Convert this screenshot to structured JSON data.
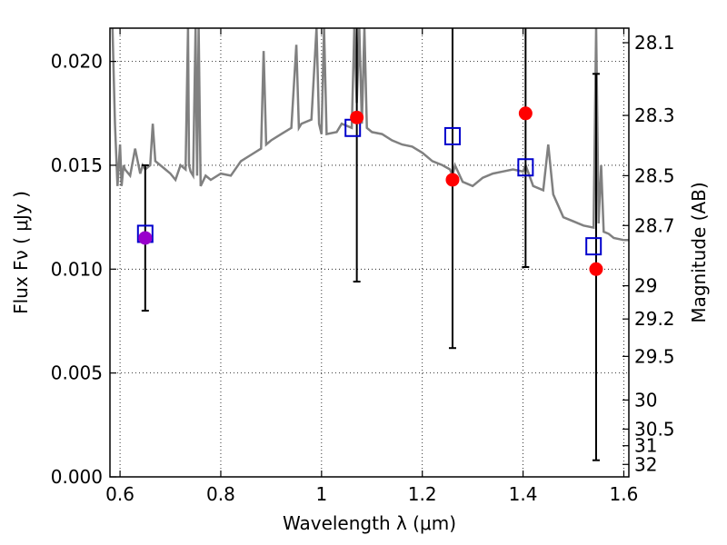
{
  "chart_data": {
    "type": "scatter",
    "xlabel": "Wavelength  λ (μm)",
    "ylabel": "Flux  Fν  ( μJy )",
    "y2label": "Magnitude (AB)",
    "xlim": [
      0.58,
      1.61
    ],
    "ylim": [
      0.0,
      0.0216
    ],
    "grid": true,
    "x_ticks": [
      0.6,
      0.8,
      1.0,
      1.2,
      1.4,
      1.6
    ],
    "x_tick_labels": [
      "0.6",
      "0.8",
      "1",
      "1.2",
      "1.4",
      "1.6"
    ],
    "y_ticks": [
      0.0,
      0.005,
      0.01,
      0.015,
      0.02
    ],
    "y_tick_labels": [
      "0.000",
      "0.005",
      "0.010",
      "0.015",
      "0.020"
    ],
    "y2_ticks": [
      {
        "label": "28.1",
        "flux": 0.0209
      },
      {
        "label": "28.3",
        "flux": 0.0174
      },
      {
        "label": "28.5",
        "flux": 0.0145
      },
      {
        "label": "28.7",
        "flux": 0.0121
      },
      {
        "label": "29",
        "flux": 0.0092
      },
      {
        "label": "29.2",
        "flux": 0.0076
      },
      {
        "label": "29.5",
        "flux": 0.0058
      },
      {
        "label": "30",
        "flux": 0.0037
      },
      {
        "label": "30.5",
        "flux": 0.0023
      },
      {
        "label": "31",
        "flux": 0.0015
      },
      {
        "label": "32",
        "flux": 0.0006
      }
    ],
    "colors": {
      "observed": "#ff0000",
      "observed_short": "#9900cc",
      "model_band": "#0000cc",
      "spectrum": "#808080",
      "errorbar": "#000000"
    },
    "series": [
      {
        "kind": "observed",
        "x": [
          0.65,
          1.07,
          1.26,
          1.405,
          1.545
        ],
        "y": [
          0.0115,
          0.0173,
          0.0143,
          0.0175,
          0.01
        ],
        "yerr_low": [
          0.008,
          0.0094,
          0.0062,
          0.0101,
          0.0008
        ],
        "yerr_high": [
          0.015,
          0.0216,
          0.0216,
          0.0216,
          0.0194
        ]
      },
      {
        "kind": "model_band",
        "x": [
          0.65,
          1.062,
          1.26,
          1.405,
          1.54
        ],
        "y": [
          0.0117,
          0.0168,
          0.0164,
          0.0149,
          0.0111
        ]
      },
      {
        "kind": "spectrum",
        "x": [
          0.585,
          0.59,
          0.595,
          0.6,
          0.603,
          0.607,
          0.61,
          0.62,
          0.63,
          0.64,
          0.645,
          0.65,
          0.66,
          0.665,
          0.67,
          0.68,
          0.69,
          0.7,
          0.71,
          0.72,
          0.73,
          0.735,
          0.737,
          0.74,
          0.745,
          0.75,
          0.753,
          0.756,
          0.76,
          0.77,
          0.78,
          0.8,
          0.82,
          0.84,
          0.86,
          0.88,
          0.885,
          0.89,
          0.9,
          0.92,
          0.94,
          0.95,
          0.955,
          0.96,
          0.98,
          0.99,
          0.995,
          1.0,
          1.005,
          1.01,
          1.03,
          1.04,
          1.06,
          1.065,
          1.07,
          1.075,
          1.08,
          1.085,
          1.09,
          1.1,
          1.12,
          1.14,
          1.16,
          1.18,
          1.2,
          1.22,
          1.24,
          1.255,
          1.26,
          1.265,
          1.28,
          1.3,
          1.32,
          1.34,
          1.36,
          1.38,
          1.4,
          1.405,
          1.42,
          1.44,
          1.45,
          1.46,
          1.48,
          1.5,
          1.52,
          1.54,
          1.545,
          1.55,
          1.555,
          1.56,
          1.57,
          1.58,
          1.6,
          1.61
        ],
        "y": [
          0.0216,
          0.017,
          0.014,
          0.016,
          0.014,
          0.015,
          0.0148,
          0.0145,
          0.0158,
          0.0146,
          0.015,
          0.0148,
          0.015,
          0.017,
          0.0152,
          0.015,
          0.0148,
          0.0146,
          0.0143,
          0.015,
          0.0148,
          0.0216,
          0.015,
          0.0147,
          0.0145,
          0.0216,
          0.0145,
          0.0216,
          0.014,
          0.0145,
          0.0143,
          0.0146,
          0.0145,
          0.0152,
          0.0155,
          0.0158,
          0.0205,
          0.016,
          0.0162,
          0.0165,
          0.0168,
          0.0208,
          0.0168,
          0.017,
          0.0172,
          0.0216,
          0.017,
          0.0165,
          0.0216,
          0.0165,
          0.0166,
          0.017,
          0.0168,
          0.0216,
          0.018,
          0.0216,
          0.017,
          0.0216,
          0.0168,
          0.0166,
          0.0165,
          0.0162,
          0.016,
          0.0159,
          0.0156,
          0.0152,
          0.015,
          0.0148,
          0.0145,
          0.015,
          0.0142,
          0.014,
          0.0144,
          0.0146,
          0.0147,
          0.0148,
          0.0147,
          0.015,
          0.014,
          0.0138,
          0.016,
          0.0136,
          0.0125,
          0.0123,
          0.0121,
          0.012,
          0.0216,
          0.0122,
          0.015,
          0.0118,
          0.0117,
          0.0115,
          0.0114,
          0.0114
        ]
      }
    ]
  }
}
